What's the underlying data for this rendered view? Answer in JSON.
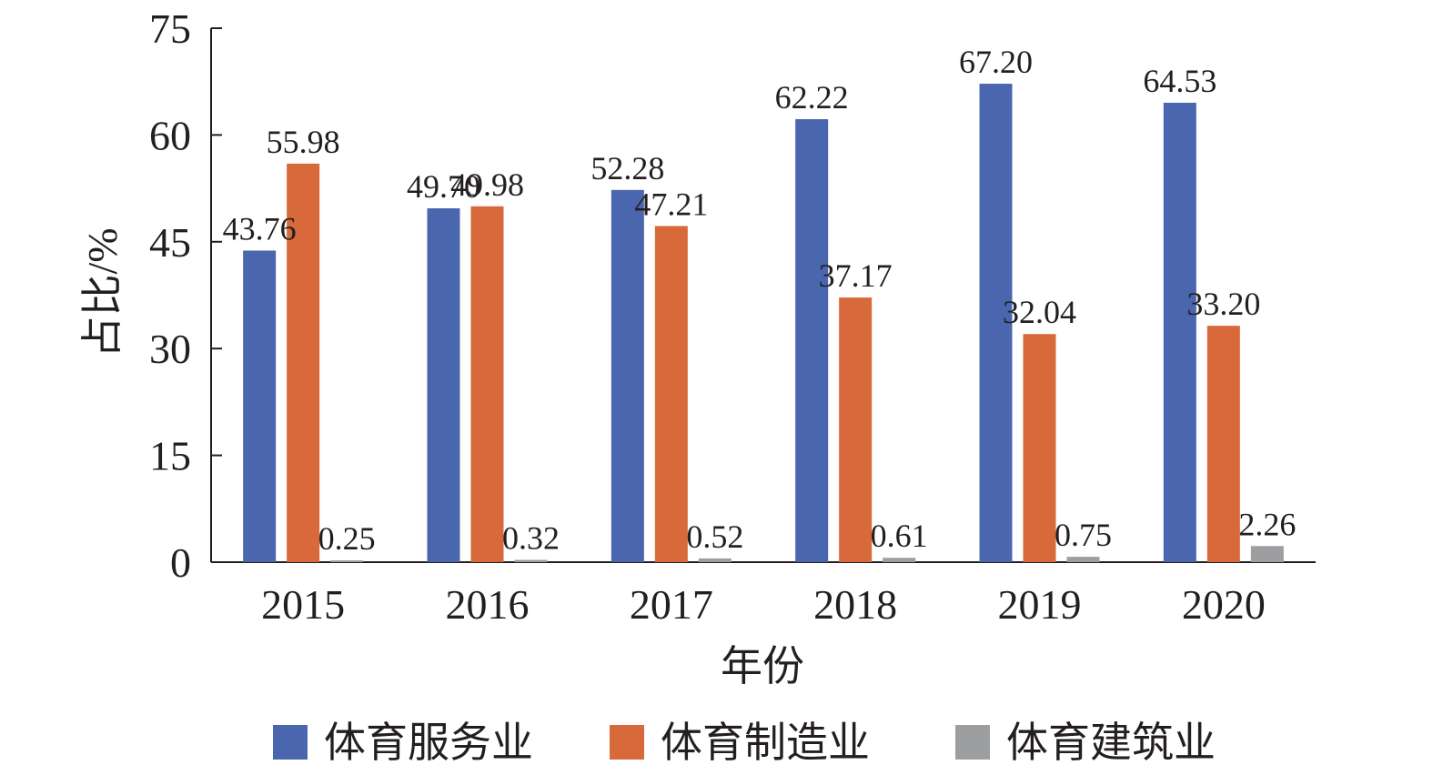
{
  "chart_data": {
    "type": "bar",
    "categories": [
      "2015",
      "2016",
      "2017",
      "2018",
      "2019",
      "2020"
    ],
    "series": [
      {
        "name": "体育服务业",
        "color": "#4a66ae",
        "values": [
          43.76,
          49.7,
          52.28,
          62.22,
          67.2,
          64.53
        ],
        "labels": [
          "43.76",
          "49.70",
          "52.28",
          "62.22",
          "67.20",
          "64.53"
        ]
      },
      {
        "name": "体育制造业",
        "color": "#d8693a",
        "values": [
          55.98,
          49.98,
          47.21,
          37.17,
          32.04,
          33.2
        ],
        "labels": [
          "55.98",
          "49.98",
          "47.21",
          "37.17",
          "32.04",
          "33.20"
        ]
      },
      {
        "name": "体育建筑业",
        "color": "#9d9ea0",
        "values": [
          0.25,
          0.32,
          0.52,
          0.61,
          0.75,
          2.26
        ],
        "labels": [
          "0.25",
          "0.32",
          "0.52",
          "0.61",
          "0.75",
          "2.26"
        ]
      }
    ],
    "xlabel": "年份",
    "ylabel": "占比/%",
    "ylim": [
      0,
      75
    ],
    "yticks": [
      0,
      15,
      30,
      45,
      60,
      75
    ],
    "grid": false,
    "legend_position": "bottom"
  }
}
